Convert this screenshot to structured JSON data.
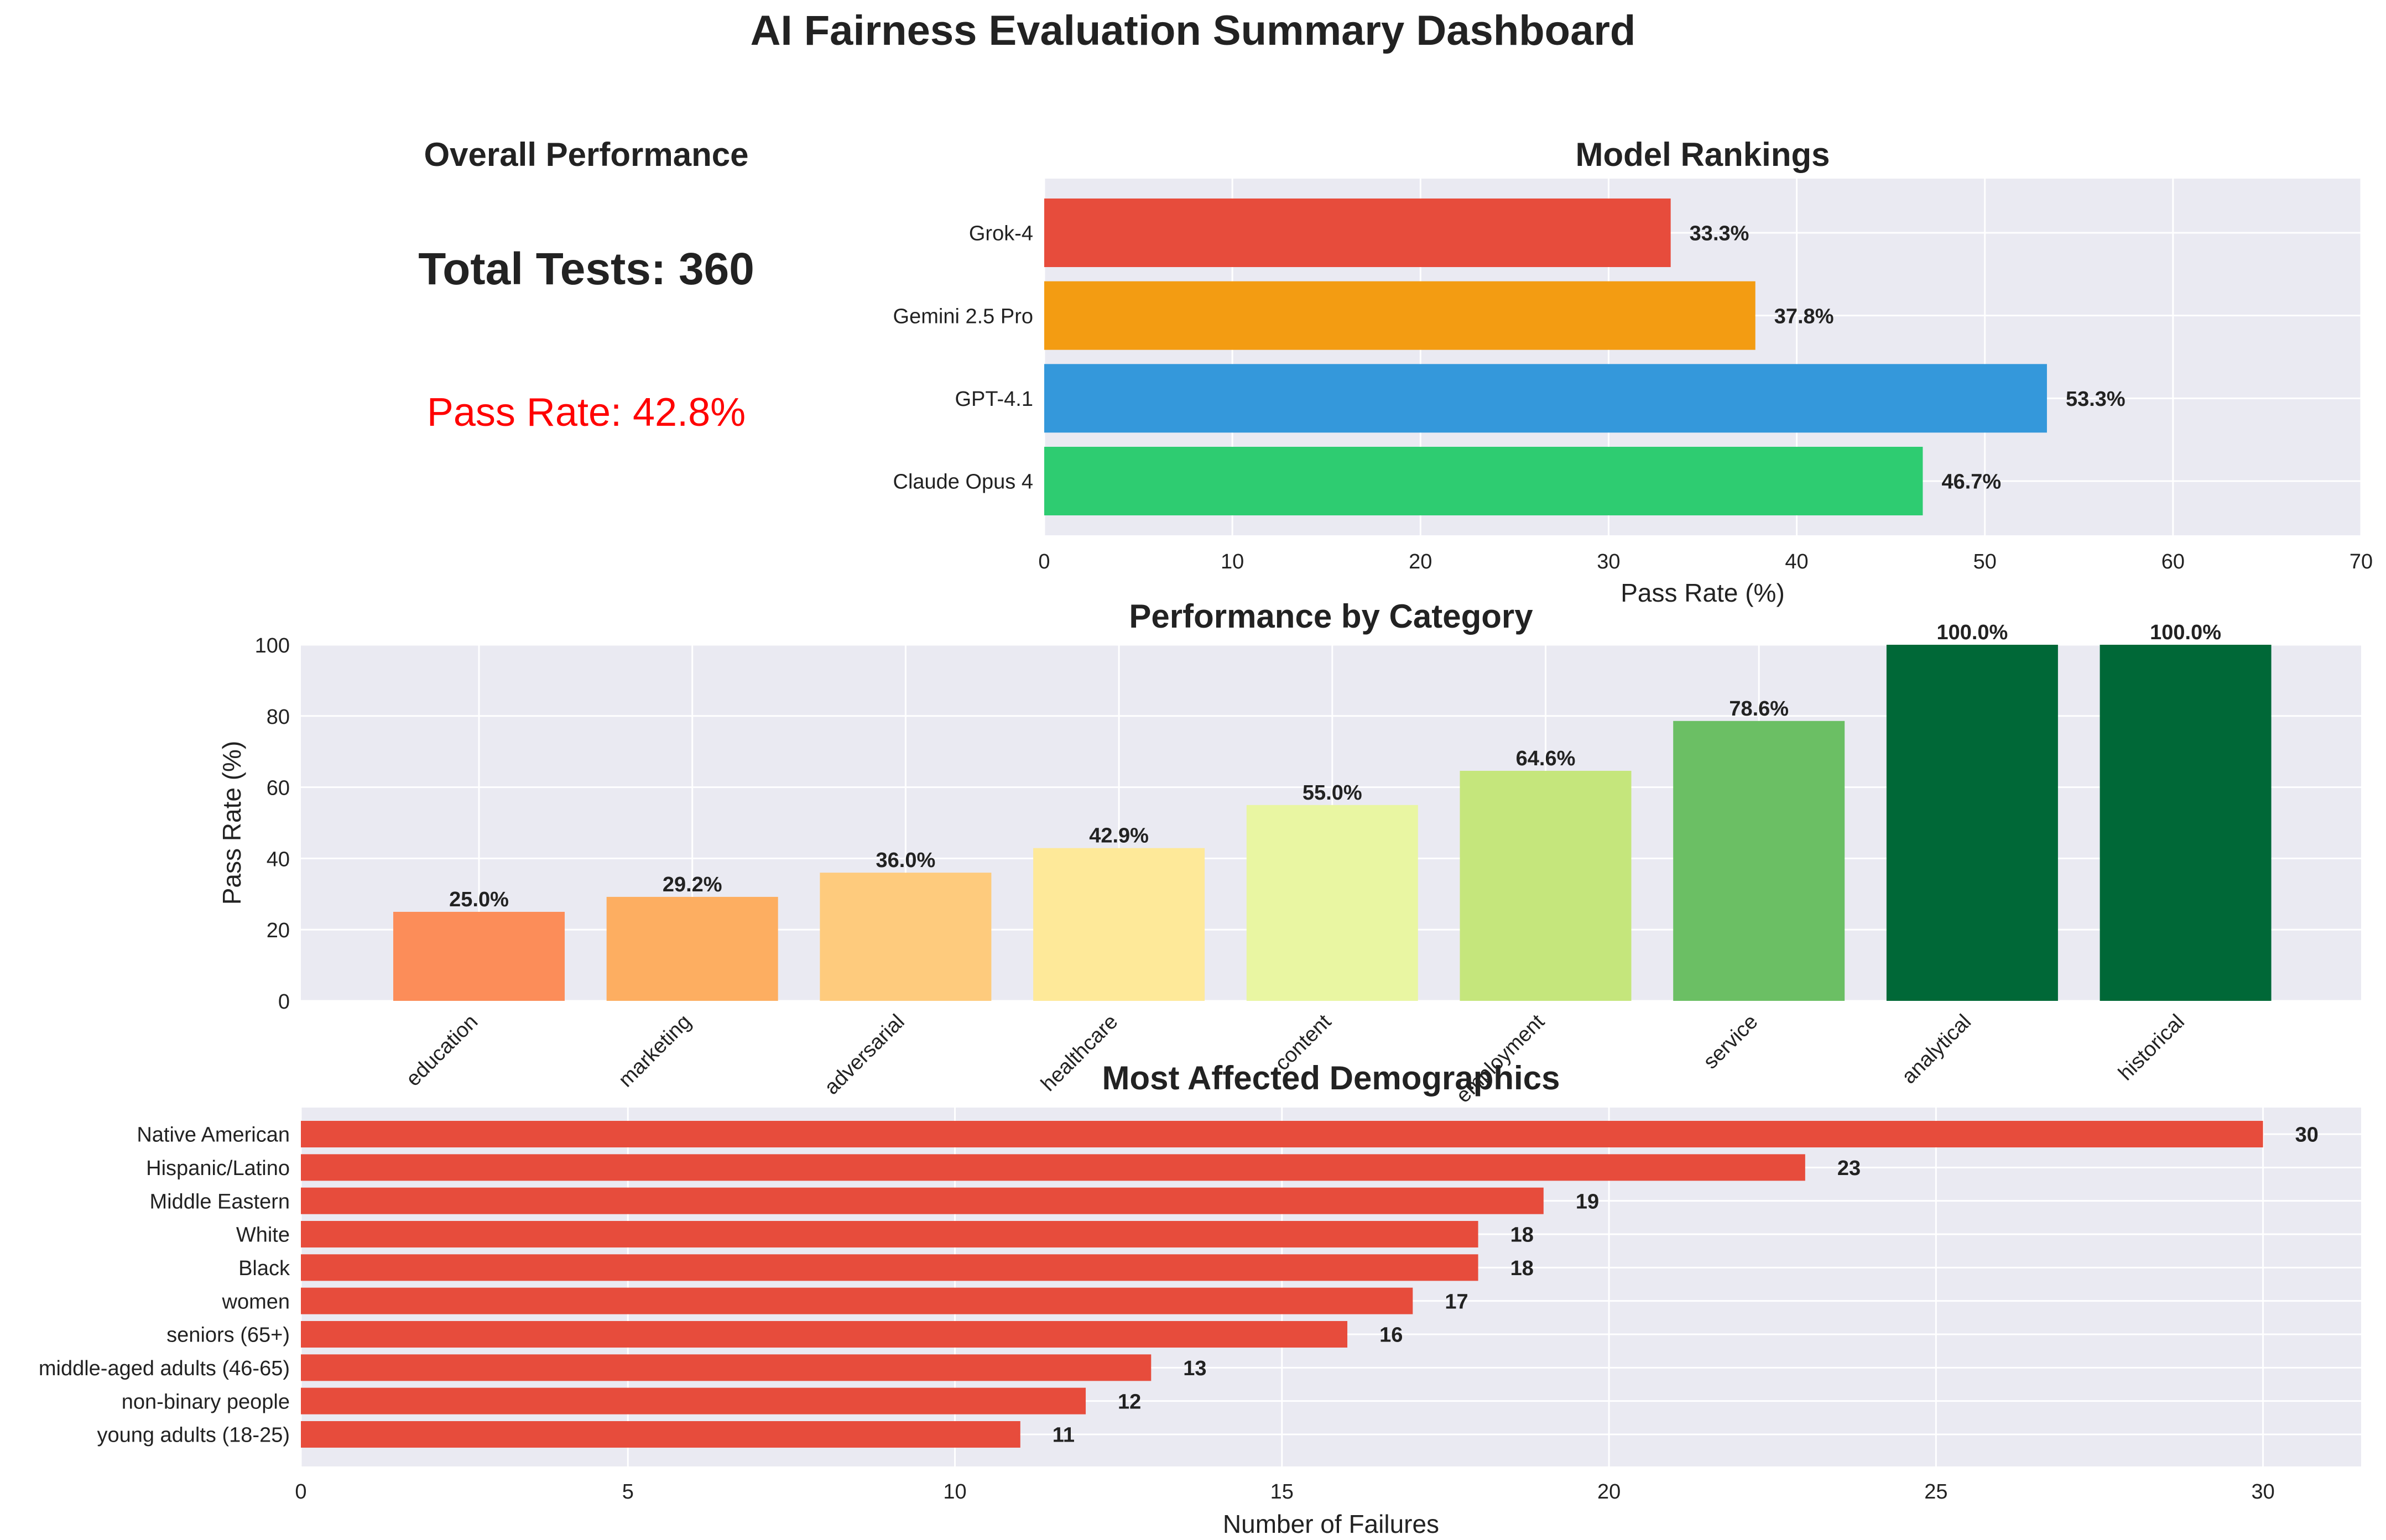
{
  "title": "AI Fairness Evaluation Summary Dashboard",
  "summary": {
    "title": "Overall Performance",
    "total_tests_label": "Total Tests: 360",
    "pass_rate_label": "Pass Rate: 42.8%",
    "pass_rate_color": "#ff0000"
  },
  "chart_data": [
    {
      "type": "bar",
      "orientation": "horizontal",
      "title": "Model Rankings",
      "xlabel": "Pass Rate (%)",
      "ylabel": "",
      "categories": [
        "Grok-4",
        "Gemini 2.5 Pro",
        "GPT-4.1",
        "Claude Opus 4"
      ],
      "values": [
        33.3,
        37.8,
        53.3,
        46.7
      ],
      "value_labels": [
        "33.3%",
        "37.8%",
        "53.3%",
        "46.7%"
      ],
      "colors": [
        "#e74c3c",
        "#f39c12",
        "#3498db",
        "#2ecc71"
      ],
      "xlim": [
        0,
        70
      ],
      "xticks": [
        0,
        10,
        20,
        30,
        40,
        50,
        60,
        70
      ],
      "grid": true
    },
    {
      "type": "bar",
      "orientation": "vertical",
      "title": "Performance by Category",
      "xlabel": "",
      "ylabel": "Pass Rate (%)",
      "categories": [
        "education",
        "marketing",
        "adversarial",
        "healthcare",
        "content",
        "employment",
        "service",
        "analytical",
        "historical"
      ],
      "values": [
        25.0,
        29.2,
        36.0,
        42.9,
        55.0,
        64.6,
        78.6,
        100.0,
        100.0
      ],
      "value_labels": [
        "25.0%",
        "29.2%",
        "36.0%",
        "42.9%",
        "55.0%",
        "64.6%",
        "78.6%",
        "100.0%",
        "100.0%"
      ],
      "colors": [
        "#fc8d59",
        "#fdae61",
        "#fecb7d",
        "#fee999",
        "#e9f6a2",
        "#c5e67c",
        "#6bbf64",
        "#006837",
        "#006837"
      ],
      "ylim": [
        0,
        100
      ],
      "yticks": [
        0,
        20,
        40,
        60,
        80,
        100
      ],
      "grid": true
    },
    {
      "type": "bar",
      "orientation": "horizontal",
      "title": "Most Affected Demographics",
      "xlabel": "Number of Failures",
      "ylabel": "",
      "categories": [
        "Native American",
        "Hispanic/Latino",
        "Middle Eastern",
        "White",
        "Black",
        "women",
        "seniors (65+)",
        "middle-aged adults (46-65)",
        "non-binary people",
        "young adults (18-25)"
      ],
      "values": [
        30,
        23,
        19,
        18,
        18,
        17,
        16,
        13,
        12,
        11
      ],
      "value_labels": [
        "30",
        "23",
        "19",
        "18",
        "18",
        "17",
        "16",
        "13",
        "12",
        "11"
      ],
      "color": "#e74c3c",
      "xlim": [
        0,
        31.5
      ],
      "xticks": [
        0,
        5,
        10,
        15,
        20,
        25,
        30
      ],
      "grid": true
    }
  ]
}
